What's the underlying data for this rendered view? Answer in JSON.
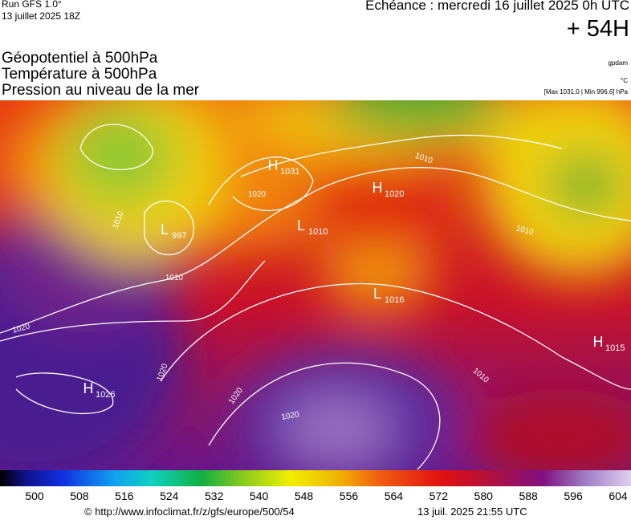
{
  "header": {
    "run": "Run GFS 1.0°",
    "run_date": "13 juillet 2025 18Z",
    "valid": "Echéance : mercredi 16 juillet 2025 0h UTC",
    "lead": "+ 54H",
    "fields": [
      "Géopotentiel à 500hPa",
      "Température à 500hPa",
      "Pression au niveau de la mer"
    ],
    "unit_geo": "gpdam",
    "unit_temp": "°C",
    "pressure_range": "[Max 1031.0 | Min 996.6] hPa"
  },
  "pressure_centers": [
    {
      "letter": "H",
      "value": 1031
    },
    {
      "letter": "H",
      "value": 1020
    },
    {
      "letter": "L",
      "value": 1010
    },
    {
      "letter": "L",
      "value": 997
    },
    {
      "letter": "L",
      "value": 1016
    },
    {
      "letter": "H",
      "value": 1015
    },
    {
      "letter": "H",
      "value": 1026
    }
  ],
  "isobar_labels": [
    1010,
    1010,
    1020,
    1020,
    1020,
    1020,
    1020,
    1010,
    1010,
    1010
  ],
  "scale": {
    "ticks": [
      500,
      508,
      516,
      524,
      532,
      540,
      548,
      556,
      564,
      572,
      580,
      588,
      596,
      604
    ]
  },
  "footer": {
    "source": "© http://www.infoclimat.fr/z/gfs/europe/500/54",
    "generated": "13 juil. 2025 21:55 UTC"
  }
}
